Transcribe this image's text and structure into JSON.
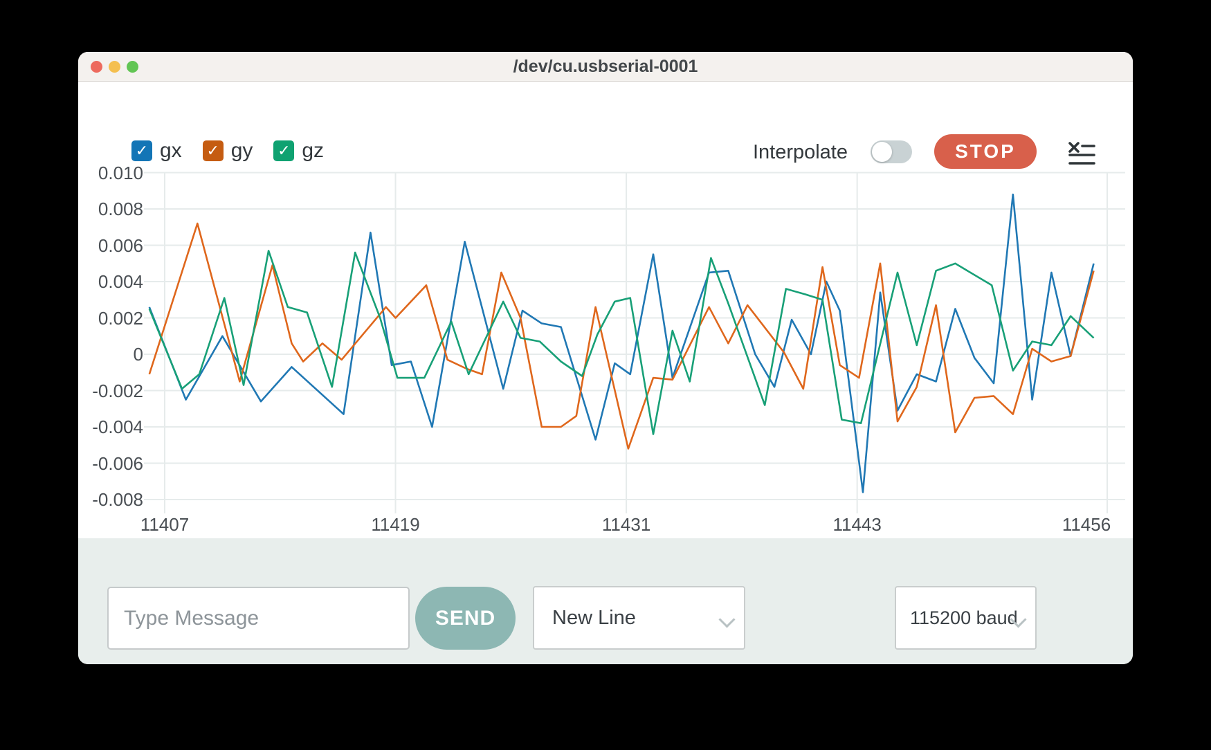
{
  "window": {
    "title": "/dev/cu.usbserial-0001"
  },
  "legend": {
    "items": [
      {
        "label": "gx",
        "color": "#1375b6",
        "checked": true
      },
      {
        "label": "gy",
        "color": "#c55c11",
        "checked": true
      },
      {
        "label": "gz",
        "color": "#0fa271",
        "checked": true
      }
    ]
  },
  "controls": {
    "interpolate_label": "Interpolate",
    "interpolate_on": false,
    "stop_label": "STOP"
  },
  "chart_data": {
    "type": "line",
    "title": "",
    "xlabel": "",
    "ylabel": "",
    "grid": true,
    "legend_position": "top-left",
    "x_range": [
      11406,
      11456
    ],
    "y_range": [
      -0.009,
      0.0105
    ],
    "x_ticks": [
      {
        "value": 11407,
        "label": "11407"
      },
      {
        "value": 11419,
        "label": "11419"
      },
      {
        "value": 11431,
        "label": "11431"
      },
      {
        "value": 11443,
        "label": "11443"
      },
      {
        "value": 11456,
        "label": "11456"
      }
    ],
    "y_ticks": [
      {
        "value": 0.01,
        "label": "0.010"
      },
      {
        "value": 0.008,
        "label": "0.008"
      },
      {
        "value": 0.006,
        "label": "0.006"
      },
      {
        "value": 0.004,
        "label": "0.004"
      },
      {
        "value": 0.002,
        "label": "0.002"
      },
      {
        "value": 0,
        "label": "0"
      },
      {
        "value": -0.002,
        "label": "-0.002"
      },
      {
        "value": -0.004,
        "label": "-0.004"
      },
      {
        "value": -0.006,
        "label": "-0.006"
      },
      {
        "value": -0.008,
        "label": "-0.008"
      }
    ],
    "series": [
      {
        "name": "gx",
        "color": "#2078b4",
        "points": [
          [
            11406.2,
            0.0026
          ],
          [
            11408.1,
            -0.0025
          ],
          [
            11410.0,
            0.001
          ],
          [
            11412.0,
            -0.0026
          ],
          [
            11413.6,
            -0.0007
          ],
          [
            11416.3,
            -0.0033
          ],
          [
            11417.7,
            0.0067
          ],
          [
            11418.8,
            -0.0006
          ],
          [
            11419.8,
            -0.0004
          ],
          [
            11420.9,
            -0.004
          ],
          [
            11422.6,
            0.0062
          ],
          [
            11424.6,
            -0.0019
          ],
          [
            11425.6,
            0.0024
          ],
          [
            11426.6,
            0.0017
          ],
          [
            11427.6,
            0.0015
          ],
          [
            11429.4,
            -0.0047
          ],
          [
            11430.4,
            -0.0005
          ],
          [
            11431.2,
            -0.0011
          ],
          [
            11432.4,
            0.0055
          ],
          [
            11433.4,
            -0.0013
          ],
          [
            11435.3,
            0.0045
          ],
          [
            11436.3,
            0.0046
          ],
          [
            11437.7,
            0.0
          ],
          [
            11438.7,
            -0.0018
          ],
          [
            11439.6,
            0.0019
          ],
          [
            11440.6,
            0.0
          ],
          [
            11441.4,
            0.004
          ],
          [
            11442.1,
            0.0024
          ],
          [
            11443.3,
            -0.0076
          ],
          [
            11444.2,
            0.0034
          ],
          [
            11445.1,
            -0.0031
          ],
          [
            11446.1,
            -0.0011
          ],
          [
            11447.1,
            -0.0015
          ],
          [
            11448.1,
            0.0025
          ],
          [
            11449.1,
            -0.0002
          ],
          [
            11450.1,
            -0.0016
          ],
          [
            11451.1,
            0.0088
          ],
          [
            11452.1,
            -0.0025
          ],
          [
            11453.1,
            0.0045
          ],
          [
            11454.1,
            -0.0001
          ],
          [
            11455.3,
            0.005
          ]
        ]
      },
      {
        "name": "gy",
        "color": "#df671c",
        "points": [
          [
            11406.2,
            -0.0011
          ],
          [
            11408.7,
            0.0072
          ],
          [
            11410.9,
            -0.0015
          ],
          [
            11412.6,
            0.0049
          ],
          [
            11413.6,
            0.0006
          ],
          [
            11414.2,
            -0.0004
          ],
          [
            11415.2,
            0.0006
          ],
          [
            11416.2,
            -0.0003
          ],
          [
            11418.5,
            0.0026
          ],
          [
            11419.0,
            0.002
          ],
          [
            11420.6,
            0.0038
          ],
          [
            11421.7,
            -0.0003
          ],
          [
            11422.7,
            -0.0008
          ],
          [
            11423.5,
            -0.0011
          ],
          [
            11424.5,
            0.0045
          ],
          [
            11425.5,
            0.002
          ],
          [
            11426.6,
            -0.004
          ],
          [
            11427.6,
            -0.004
          ],
          [
            11428.4,
            -0.0034
          ],
          [
            11429.4,
            0.0026
          ],
          [
            11431.1,
            -0.0052
          ],
          [
            11432.4,
            -0.0013
          ],
          [
            11433.4,
            -0.0014
          ],
          [
            11435.3,
            0.0026
          ],
          [
            11436.3,
            0.0006
          ],
          [
            11437.3,
            0.0027
          ],
          [
            11439.2,
            0.0001
          ],
          [
            11440.2,
            -0.0019
          ],
          [
            11441.2,
            0.0048
          ],
          [
            11442.1,
            -0.0006
          ],
          [
            11443.1,
            -0.0013
          ],
          [
            11444.2,
            0.005
          ],
          [
            11445.1,
            -0.0037
          ],
          [
            11446.1,
            -0.0018
          ],
          [
            11447.1,
            0.0027
          ],
          [
            11448.1,
            -0.0043
          ],
          [
            11449.1,
            -0.0024
          ],
          [
            11450.1,
            -0.0023
          ],
          [
            11451.1,
            -0.0033
          ],
          [
            11452.1,
            0.0003
          ],
          [
            11453.1,
            -0.0004
          ],
          [
            11454.1,
            -0.0001
          ],
          [
            11455.3,
            0.0046
          ]
        ]
      },
      {
        "name": "gz",
        "color": "#18a077",
        "points": [
          [
            11406.2,
            0.0025
          ],
          [
            11407.9,
            -0.0019
          ],
          [
            11408.8,
            -0.0011
          ],
          [
            11410.1,
            0.0031
          ],
          [
            11411.1,
            -0.0017
          ],
          [
            11412.4,
            0.0057
          ],
          [
            11413.4,
            0.0026
          ],
          [
            11414.4,
            0.0023
          ],
          [
            11415.7,
            -0.0018
          ],
          [
            11416.9,
            0.0056
          ],
          [
            11418.2,
            0.002
          ],
          [
            11419.1,
            -0.0013
          ],
          [
            11420.5,
            -0.0013
          ],
          [
            11421.9,
            0.0018
          ],
          [
            11422.8,
            -0.0011
          ],
          [
            11424.6,
            0.0029
          ],
          [
            11425.5,
            0.0009
          ],
          [
            11426.5,
            0.0007
          ],
          [
            11427.6,
            -0.0004
          ],
          [
            11428.7,
            -0.0012
          ],
          [
            11429.5,
            0.0011
          ],
          [
            11430.4,
            0.0029
          ],
          [
            11431.2,
            0.0031
          ],
          [
            11432.4,
            -0.0044
          ],
          [
            11433.4,
            0.0013
          ],
          [
            11434.3,
            -0.0015
          ],
          [
            11435.4,
            0.0053
          ],
          [
            11436.3,
            0.0028
          ],
          [
            11438.2,
            -0.0028
          ],
          [
            11439.3,
            0.0036
          ],
          [
            11440.3,
            0.0033
          ],
          [
            11441.2,
            0.003
          ],
          [
            11442.2,
            -0.0036
          ],
          [
            11443.2,
            -0.0038
          ],
          [
            11445.1,
            0.0045
          ],
          [
            11446.1,
            0.0005
          ],
          [
            11447.1,
            0.0046
          ],
          [
            11448.1,
            0.005
          ],
          [
            11450.0,
            0.0038
          ],
          [
            11451.1,
            -0.0009
          ],
          [
            11452.1,
            0.0007
          ],
          [
            11453.1,
            0.0005
          ],
          [
            11454.1,
            0.0021
          ],
          [
            11455.3,
            0.0009
          ]
        ]
      }
    ]
  },
  "message_bar": {
    "placeholder": "Type Message",
    "send_label": "SEND",
    "line_ending": "New Line",
    "baud": "115200 baud"
  }
}
